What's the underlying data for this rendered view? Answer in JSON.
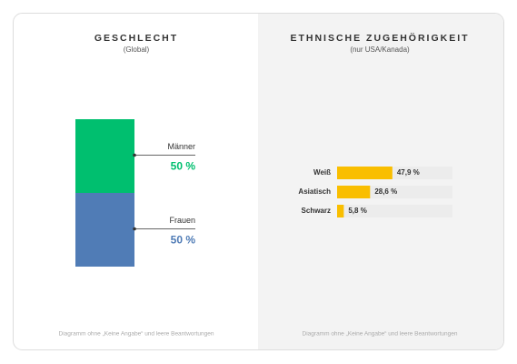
{
  "chart_data": [
    {
      "type": "stacked_bar",
      "title": "GESCHLECHT",
      "subtitle": "(Global)",
      "series": [
        {
          "name": "Männer",
          "color": "#00bf6f",
          "values": [
            50
          ],
          "value_labels": [
            "50 %"
          ]
        },
        {
          "name": "Frauen",
          "color": "#507cb6",
          "values": [
            50
          ],
          "value_labels": [
            "50 %"
          ]
        }
      ],
      "ylim": [
        0,
        100
      ],
      "note": "Diagramm ohne „Keine Angabe“ und leere Beantwortungen"
    },
    {
      "type": "barh",
      "title": "ETHNISCHE ZUGEHÖRIGKEIT",
      "subtitle": "(nur USA/Kanada)",
      "categories": [
        "Weiß",
        "Asiatisch",
        "Schwarz"
      ],
      "values": [
        47.9,
        28.6,
        5.8
      ],
      "value_labels": [
        "47,9 %",
        "28,6 %",
        "5,8  %"
      ],
      "color": "#f9be00",
      "track_color": "#ececec",
      "xlim": [
        0,
        100
      ],
      "note": "Diagramm ohne „Keine Angabe“ und leere Beantwortungen"
    }
  ]
}
